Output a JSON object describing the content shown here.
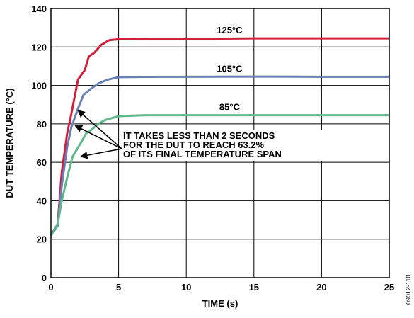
{
  "chart_data": {
    "type": "line",
    "title": "",
    "xlabel": "TIME (s)",
    "ylabel": "DUT TEMPERATURE (°C)",
    "xlim": [
      0,
      25
    ],
    "ylim": [
      0,
      140
    ],
    "x_ticks": [
      0,
      5,
      10,
      15,
      20,
      25
    ],
    "y_ticks": [
      0,
      20,
      40,
      60,
      80,
      100,
      120,
      140
    ],
    "grid": true,
    "legend": "none",
    "series": [
      {
        "name": "125°C",
        "color": "#d41f3c",
        "points": [
          [
            0,
            22
          ],
          [
            0.5,
            28
          ],
          [
            0.8,
            55
          ],
          [
            1.2,
            75
          ],
          [
            1.5,
            85
          ],
          [
            2,
            103
          ],
          [
            2.5,
            108
          ],
          [
            2.8,
            115
          ],
          [
            3.2,
            117
          ],
          [
            3.7,
            121
          ],
          [
            4.3,
            123.5
          ],
          [
            5,
            124
          ],
          [
            7,
            124.3
          ],
          [
            12,
            124.3
          ],
          [
            15,
            124.5
          ],
          [
            20,
            124.5
          ],
          [
            25,
            124.5
          ]
        ]
      },
      {
        "name": "105°C",
        "color": "#6a7fb8",
        "points": [
          [
            0,
            22
          ],
          [
            0.5,
            27
          ],
          [
            0.8,
            48
          ],
          [
            1.2,
            68
          ],
          [
            1.5,
            78
          ],
          [
            2,
            88
          ],
          [
            2.4,
            95
          ],
          [
            3,
            98.5
          ],
          [
            3.5,
            101
          ],
          [
            4.2,
            103
          ],
          [
            5,
            104.3
          ],
          [
            8,
            104.5
          ],
          [
            15,
            104.6
          ],
          [
            20,
            104.5
          ],
          [
            25,
            104.5
          ]
        ]
      },
      {
        "name": "85°C",
        "color": "#5fb78a",
        "points": [
          [
            0,
            22
          ],
          [
            0.5,
            28
          ],
          [
            0.8,
            40
          ],
          [
            1.2,
            52
          ],
          [
            1.6,
            63
          ],
          [
            2.2,
            70
          ],
          [
            2.6,
            75
          ],
          [
            3,
            77
          ],
          [
            3.5,
            80
          ],
          [
            4,
            82
          ],
          [
            5,
            84
          ],
          [
            7,
            84.5
          ],
          [
            15,
            84.5
          ],
          [
            20,
            84.5
          ],
          [
            25,
            84.5
          ]
        ]
      }
    ],
    "annotation": {
      "lines": [
        "IT TAKES LESS THAN 2 SECONDS",
        "FOR THE DUT TO REACH 63.2%",
        "OF ITS FINAL TEMPERATURE SPAN"
      ],
      "arrow_targets": [
        [
          2,
          87
        ],
        [
          1.8,
          79
        ],
        [
          2.2,
          63
        ]
      ]
    }
  },
  "figure_id": "09012-110"
}
